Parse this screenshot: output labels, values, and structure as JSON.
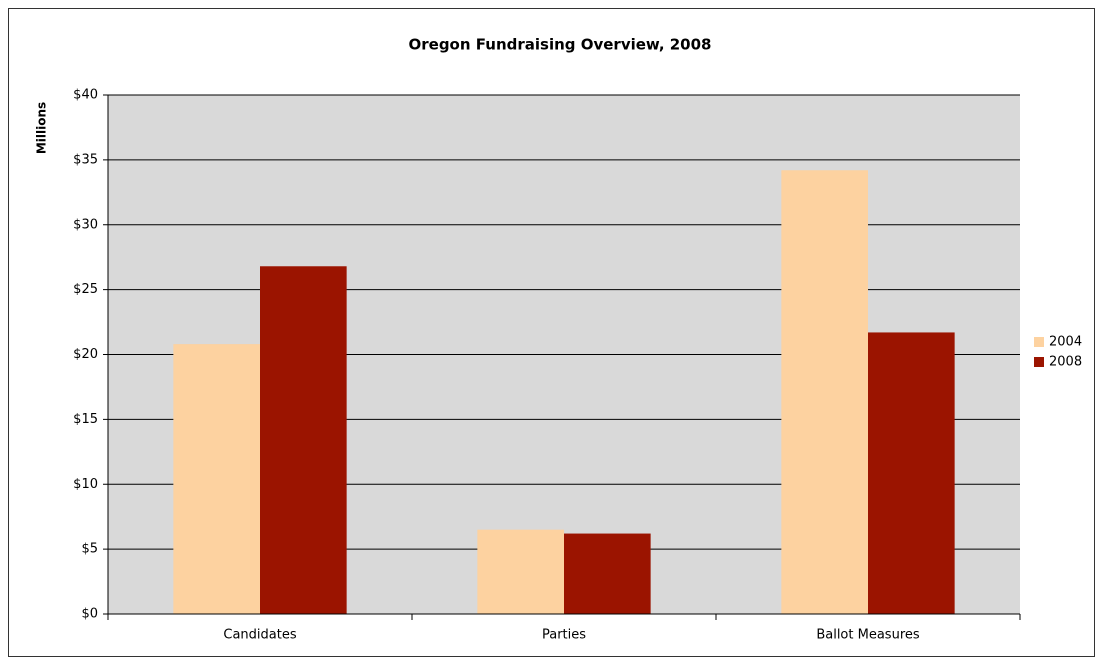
{
  "chart_data": {
    "type": "bar",
    "title": "Oregon Fundraising Overview, 2008",
    "y_label": "Millions",
    "categories": [
      "Candidates",
      "Parties",
      "Ballot Measures"
    ],
    "series": [
      {
        "name": "2004",
        "color": "#fdd2a0",
        "values": [
          20.8,
          6.5,
          34.2
        ]
      },
      {
        "name": "2008",
        "color": "#9b1400",
        "values": [
          26.8,
          6.2,
          21.7
        ]
      }
    ],
    "ylim": [
      0,
      40
    ],
    "yticks": [
      {
        "value": 0,
        "label": "$0"
      },
      {
        "value": 5,
        "label": "$5"
      },
      {
        "value": 10,
        "label": "$10"
      },
      {
        "value": 15,
        "label": "$15"
      },
      {
        "value": 20,
        "label": "$20"
      },
      {
        "value": 25,
        "label": "$25"
      },
      {
        "value": 30,
        "label": "$30"
      },
      {
        "value": 35,
        "label": "$35"
      },
      {
        "value": 40,
        "label": "$40"
      }
    ],
    "grid": true,
    "legend": "right",
    "background": "#d9d9d9"
  }
}
